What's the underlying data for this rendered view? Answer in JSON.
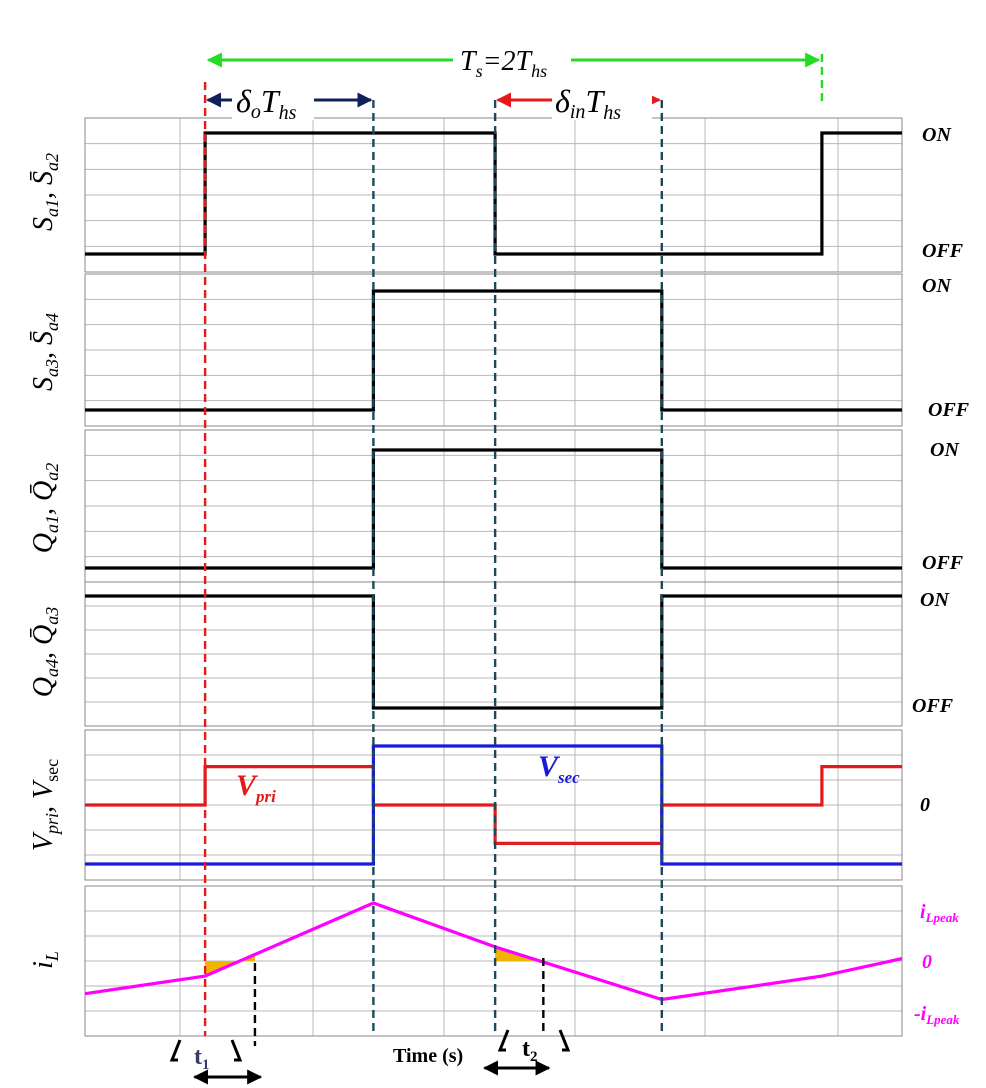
{
  "chart_data": {
    "type": "line",
    "title": "",
    "xlabel": "Time (s)",
    "xlim": [
      0,
      100
    ],
    "annotations": {
      "period": "T_s=2T_hs",
      "delta_o": "δ_o T_hs",
      "delta_in": "δ_in T_hs",
      "t1": "t1",
      "t2": "t2",
      "t1_label": "t",
      "t1_sub": "1",
      "t2_label": "t",
      "t2_sub": "2"
    },
    "markers": {
      "period": [
        14.7,
        90.2
      ],
      "delta_o": [
        14.7,
        35.3
      ],
      "delta_in": [
        50.2,
        70.6
      ],
      "t1": [
        14.7,
        20.8
      ],
      "t2": [
        50.2,
        56.1
      ]
    },
    "panels": [
      {
        "ylabel": "S_a1, S̄_a2",
        "levels": [
          "ON",
          "OFF"
        ],
        "series": [
          {
            "color": "#000000",
            "x": [
              0,
              14.7,
              14.7,
              50.2,
              50.2,
              90.2,
              90.2,
              100
            ],
            "y": [
              0,
              0,
              1,
              1,
              0,
              0,
              1,
              1
            ]
          }
        ]
      },
      {
        "ylabel": "S_a3, S̄_a4",
        "levels": [
          "ON",
          "OFF"
        ],
        "series": [
          {
            "color": "#000000",
            "x": [
              0,
              35.3,
              35.3,
              70.6,
              70.6,
              100
            ],
            "y": [
              0,
              0,
              1,
              1,
              0,
              0
            ]
          }
        ]
      },
      {
        "ylabel": "Q_a1, Q̄_a2",
        "levels": [
          "ON",
          "OFF"
        ],
        "series": [
          {
            "color": "#000000",
            "x": [
              0,
              35.3,
              35.3,
              70.6,
              70.6,
              100
            ],
            "y": [
              0,
              0,
              1,
              1,
              0,
              0
            ]
          }
        ]
      },
      {
        "ylabel": "Q_a4, Q̄_a3",
        "levels": [
          "ON",
          "OFF"
        ],
        "series": [
          {
            "color": "#000000",
            "x": [
              0,
              35.3,
              35.3,
              70.6,
              70.6,
              100
            ],
            "y": [
              1,
              1,
              0,
              0,
              1,
              1
            ]
          }
        ]
      },
      {
        "ylabel": "V_pri, V_sec",
        "levels": [
          "0"
        ],
        "series": [
          {
            "name": "V_pri",
            "color": "#e41a1a",
            "x": [
              0,
              14.7,
              14.7,
              35.3,
              35.3,
              50.2,
              50.2,
              70.6,
              70.6,
              90.2,
              90.2,
              100
            ],
            "y": [
              0,
              0,
              0.65,
              0.65,
              0,
              0,
              -0.65,
              -0.65,
              0,
              0,
              0.65,
              0.65
            ]
          },
          {
            "name": "V_sec",
            "color": "#1a1adb",
            "x": [
              0,
              35.3,
              35.3,
              70.6,
              70.6,
              100
            ],
            "y": [
              -1,
              -1,
              1,
              1,
              -1,
              -1
            ]
          }
        ]
      },
      {
        "ylabel": "i_L",
        "levels": [
          "i_Lpeak",
          "0",
          "-i_Lpeak"
        ],
        "series": [
          {
            "name": "i_L",
            "color": "#ff00ff",
            "x": [
              0,
              14.7,
              35.3,
              50.2,
              70.6,
              90.2,
              100
            ],
            "y": [
              -0.55,
              -0.25,
              1,
              0.25,
              -0.65,
              -0.25,
              0.05
            ]
          }
        ]
      }
    ]
  }
}
